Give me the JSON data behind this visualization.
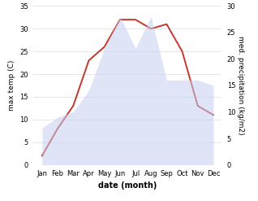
{
  "months": [
    "Jan",
    "Feb",
    "Mar",
    "Apr",
    "May",
    "Jun",
    "Jul",
    "Aug",
    "Sep",
    "Oct",
    "Nov",
    "Dec"
  ],
  "temperature": [
    2,
    8,
    13,
    23,
    26,
    32,
    32,
    30,
    31,
    25,
    13,
    11
  ],
  "precipitation": [
    7,
    9,
    10,
    14,
    22,
    28,
    22,
    28,
    16,
    16,
    16,
    15
  ],
  "temp_color": "#c0392b",
  "precip_fill_color": "#c5cef0",
  "bg_color": "#ffffff",
  "temp_ylim": [
    0,
    35
  ],
  "precip_ylim": [
    0,
    30
  ],
  "temp_yticks": [
    0,
    5,
    10,
    15,
    20,
    25,
    30,
    35
  ],
  "precip_yticks": [
    0,
    5,
    10,
    15,
    20,
    25,
    30
  ],
  "xlabel": "date (month)",
  "ylabel_left": "max temp (C)",
  "ylabel_right": "med. precipitation (kg/m2)",
  "label_fontsize": 6.5,
  "tick_fontsize": 6,
  "xlabel_fontsize": 7
}
